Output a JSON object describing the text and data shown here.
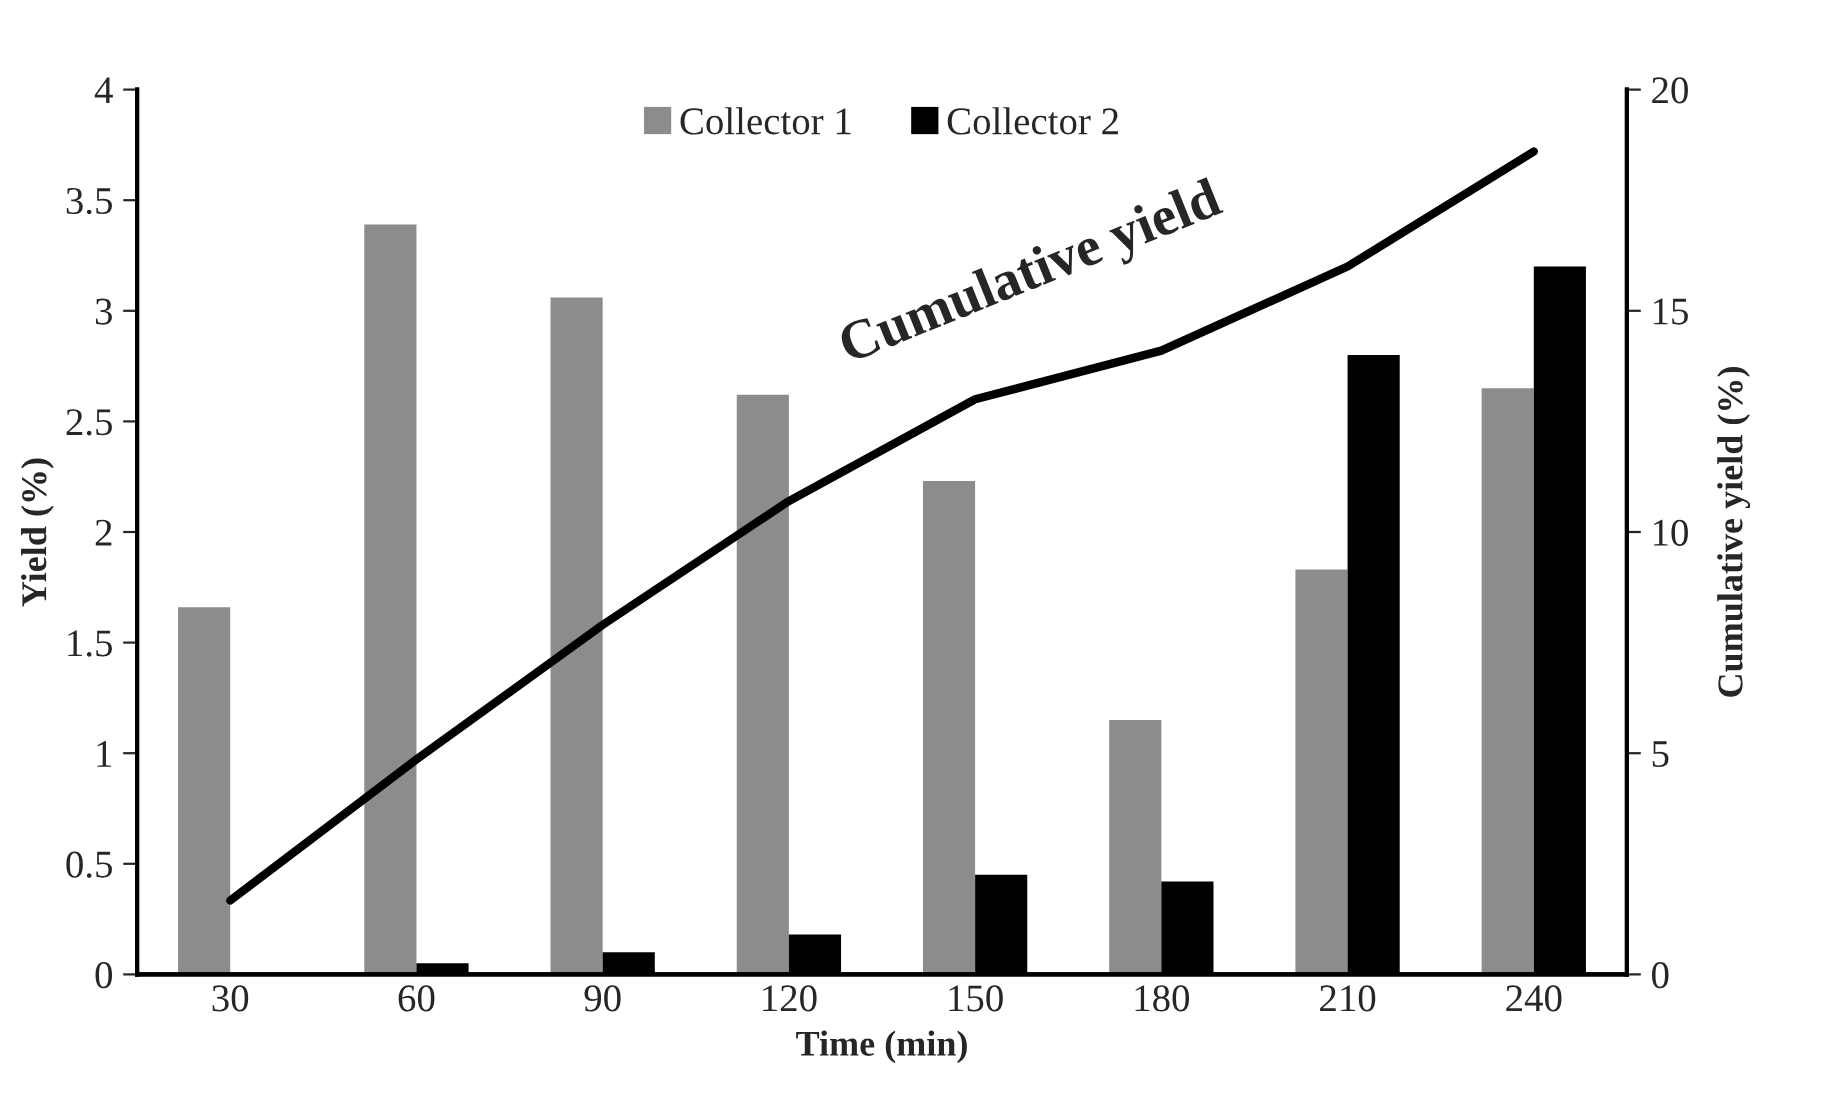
{
  "chart_data": {
    "type": "bar",
    "xlabel": "Time (min)",
    "ylabel": "Yield (%)",
    "y2label": "Cumulative yield (%)",
    "categories": [
      "30",
      "60",
      "90",
      "120",
      "150",
      "180",
      "210",
      "240"
    ],
    "series": [
      {
        "name": "Collector 1",
        "color": "#8c8c8c",
        "values": [
          1.66,
          3.39,
          3.06,
          2.62,
          2.23,
          1.15,
          1.83,
          2.65
        ]
      },
      {
        "name": "Collector 2",
        "color": "#000000",
        "values": [
          0,
          0.05,
          0.1,
          0.18,
          0.45,
          0.42,
          2.8,
          3.2
        ]
      },
      {
        "type": "line",
        "axis": "y2",
        "color": "#000000",
        "values": [
          1.67,
          4.86,
          7.9,
          10.7,
          13.0,
          14.1,
          16.0,
          18.6
        ]
      }
    ],
    "annotations": [
      "Cumulative yield"
    ],
    "ylim": [
      0,
      4
    ],
    "yticks": [
      0,
      0.5,
      1,
      1.5,
      2,
      2.5,
      3,
      3.5,
      4
    ],
    "y2lim": [
      0,
      20
    ],
    "y2ticks": [
      0,
      5,
      10,
      15,
      20
    ],
    "legend": "top",
    "grid": false
  }
}
